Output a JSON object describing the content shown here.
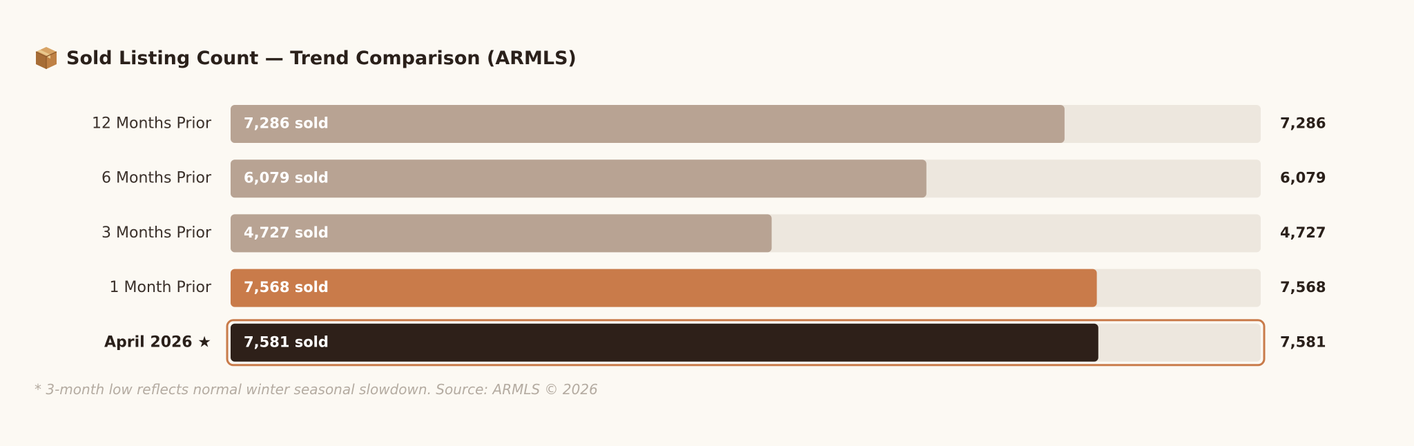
{
  "title": "Sold Listing Count — Trend Comparison (ARMLS)",
  "title_icon": "package-box-icon",
  "footnote": "* 3-month low reflects normal winter seasonal slowdown. Source: ARMLS © 2026",
  "chart_data": {
    "type": "bar",
    "orientation": "horizontal",
    "title": "Sold Listing Count — Trend Comparison (ARMLS)",
    "xlabel": "",
    "ylabel": "",
    "xlim": [
      0,
      9000
    ],
    "grid": false,
    "legend": "none",
    "categories": [
      "12 Months Prior",
      "6 Months Prior",
      "3 Months Prior",
      "1 Month Prior",
      "April 2026 ★"
    ],
    "values": [
      7286,
      6079,
      4727,
      7568,
      7581
    ],
    "bar_labels": [
      "7,286 sold",
      "6,079 sold",
      "4,727 sold",
      "7,568 sold",
      "7,581 sold"
    ],
    "value_labels": [
      "7,286",
      "6,079",
      "4,727",
      "7,568",
      "7,581"
    ],
    "highlight_index": 4,
    "colors": {
      "background": "#fcf9f3",
      "track": "#ede7de",
      "prior": "#b8a393",
      "recent": "#c97b4a",
      "current": "#2e2019",
      "current_outline": "#c97b4a",
      "label": "#3a302a",
      "value": "#2a201a",
      "bar_text": "#ffffff",
      "footnote": "#b4aba1"
    }
  }
}
